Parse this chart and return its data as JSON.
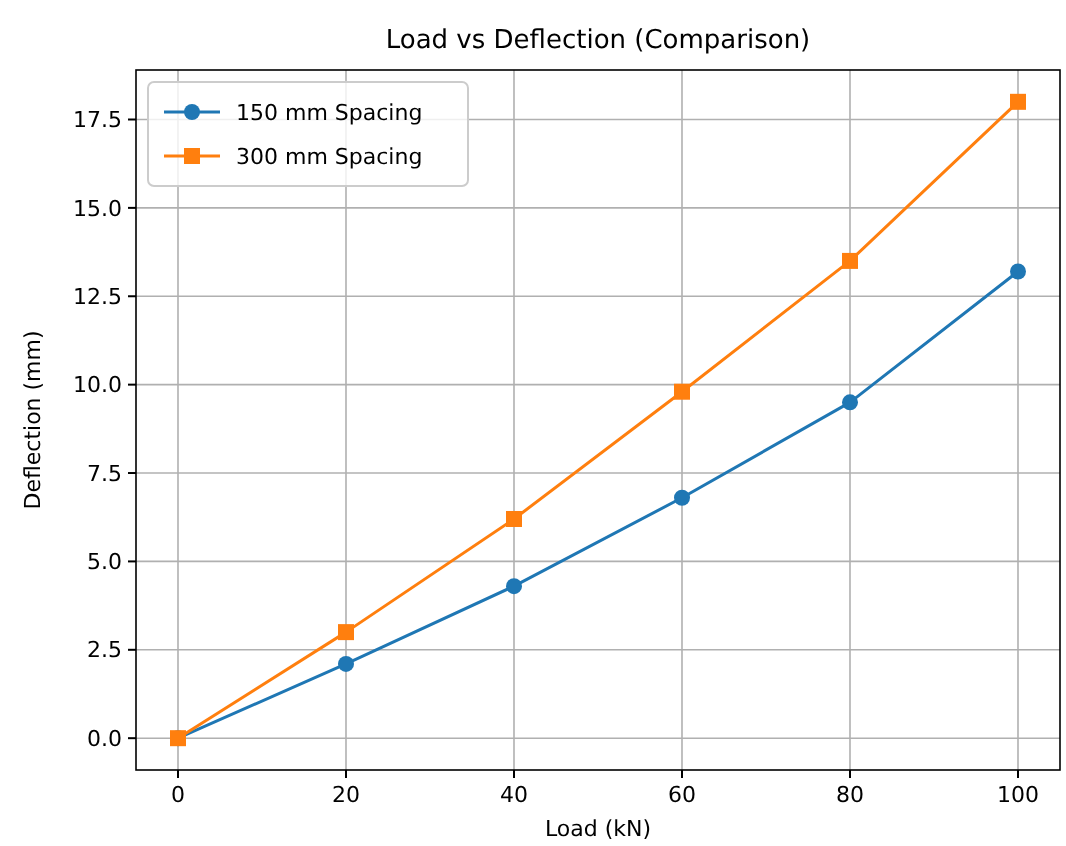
{
  "chart_data": {
    "type": "line",
    "title": "Load vs Deflection (Comparison)",
    "xlabel": "Load (kN)",
    "ylabel": "Deflection (mm)",
    "x": [
      0,
      20,
      40,
      60,
      80,
      100
    ],
    "series": [
      {
        "name": "150 mm Spacing",
        "color": "#1f77b4",
        "marker": "circle",
        "values": [
          0,
          2.1,
          4.3,
          6.8,
          9.5,
          13.2
        ]
      },
      {
        "name": "300 mm Spacing",
        "color": "#ff7f0e",
        "marker": "square",
        "values": [
          0,
          3.0,
          6.2,
          9.8,
          13.5,
          18.0
        ]
      }
    ],
    "xlim": [
      -5,
      105
    ],
    "xticks": [
      0,
      20,
      40,
      60,
      80,
      100
    ],
    "ylim": [
      -0.9,
      18.9
    ],
    "yticks": [
      {
        "value": 0,
        "label": "0.0"
      },
      {
        "value": 2.5,
        "label": "2.5"
      },
      {
        "value": 5,
        "label": "5.0"
      },
      {
        "value": 7.5,
        "label": "7.5"
      },
      {
        "value": 10,
        "label": "10.0"
      },
      {
        "value": 12.5,
        "label": "12.5"
      },
      {
        "value": 15,
        "label": "15.0"
      },
      {
        "value": 17.5,
        "label": "17.5"
      }
    ],
    "grid": true,
    "legend": "top left",
    "line_style": "solid"
  }
}
